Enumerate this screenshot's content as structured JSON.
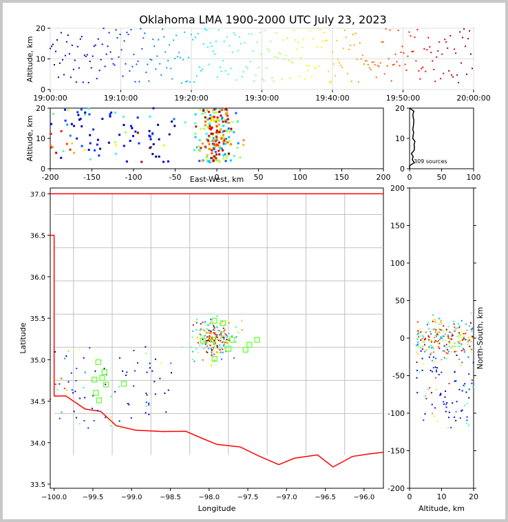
{
  "title": "Oklahoma LMA 1900-2000 UTC July 23, 2023",
  "colors": {
    "border": "#c8c8c8",
    "state_line": "#ff0000",
    "county": "#c0c0c0",
    "station": "#66ff33",
    "axis": "#000000"
  },
  "chart_data": [
    {
      "id": "time_altitude",
      "type": "scatter",
      "ylabel": "Altitude, km",
      "xlim": [
        "19:00:00",
        "20:00:00"
      ],
      "ylim": [
        0,
        20
      ],
      "xticks": [
        "19:00:00",
        "19:10:00",
        "19:20:00",
        "19:30:00",
        "19:40:00",
        "19:50:00",
        "20:00:00"
      ],
      "yticks": [
        0,
        10,
        20
      ],
      "color_by": "time (blue to red)"
    },
    {
      "id": "eastwest_altitude",
      "type": "scatter",
      "xlabel": "East-West, km",
      "ylabel": "Altitude, km",
      "xlim": [
        -200,
        200
      ],
      "ylim": [
        0,
        20
      ],
      "xticks": [
        -200,
        -150,
        -100,
        -50,
        0,
        50,
        100,
        150,
        200
      ],
      "yticks": [
        0,
        10,
        20
      ]
    },
    {
      "id": "altitude_histogram",
      "type": "line",
      "annotation": "309 sources",
      "xlim": [
        0,
        100
      ],
      "ylim": [
        0,
        20
      ],
      "xticks": [
        0,
        50,
        100
      ],
      "yticks": [
        0,
        10,
        20
      ]
    },
    {
      "id": "plan_view",
      "type": "scatter",
      "xlabel": "Longitude",
      "ylabel": "Latitude",
      "xlim": [
        -100.05,
        -95.75
      ],
      "ylim": [
        33.45,
        37.07
      ],
      "xticks": [
        -100.0,
        -99.5,
        -99.0,
        -98.5,
        -98.0,
        -97.5,
        -97.0,
        -96.5,
        -96.0
      ],
      "xtick_labels": [
        "−100.0",
        "−99.5",
        "−99.0",
        "−98.5",
        "−98.0",
        "−97.5",
        "−97.0",
        "−96.5",
        "−96.0"
      ],
      "yticks": [
        33.5,
        34.0,
        34.5,
        35.0,
        35.5,
        36.0,
        36.5,
        37.0
      ],
      "stations": [
        [
          -99.43,
          34.97
        ],
        [
          -99.35,
          34.85
        ],
        [
          -99.38,
          34.78
        ],
        [
          -99.48,
          34.76
        ],
        [
          -99.33,
          34.7
        ],
        [
          -99.46,
          34.6
        ],
        [
          -99.42,
          34.51
        ],
        [
          -99.1,
          34.71
        ],
        [
          -97.93,
          35.47
        ],
        [
          -98.08,
          35.23
        ],
        [
          -97.95,
          35.24
        ],
        [
          -97.93,
          35.01
        ],
        [
          -97.82,
          35.44
        ],
        [
          -97.7,
          35.24
        ],
        [
          -97.75,
          35.13
        ],
        [
          -97.53,
          35.12
        ],
        [
          -97.48,
          35.18
        ],
        [
          -97.38,
          35.24
        ]
      ]
    },
    {
      "id": "altitude_northsouth",
      "type": "scatter",
      "xlabel": "Altitude, km",
      "ylabel": "North-South, km",
      "xlim": [
        0,
        20
      ],
      "ylim": [
        -200,
        200
      ],
      "xticks": [
        0,
        10,
        20
      ],
      "yticks": [
        -200,
        -150,
        -100,
        -50,
        0,
        50,
        100,
        150,
        200
      ]
    }
  ]
}
